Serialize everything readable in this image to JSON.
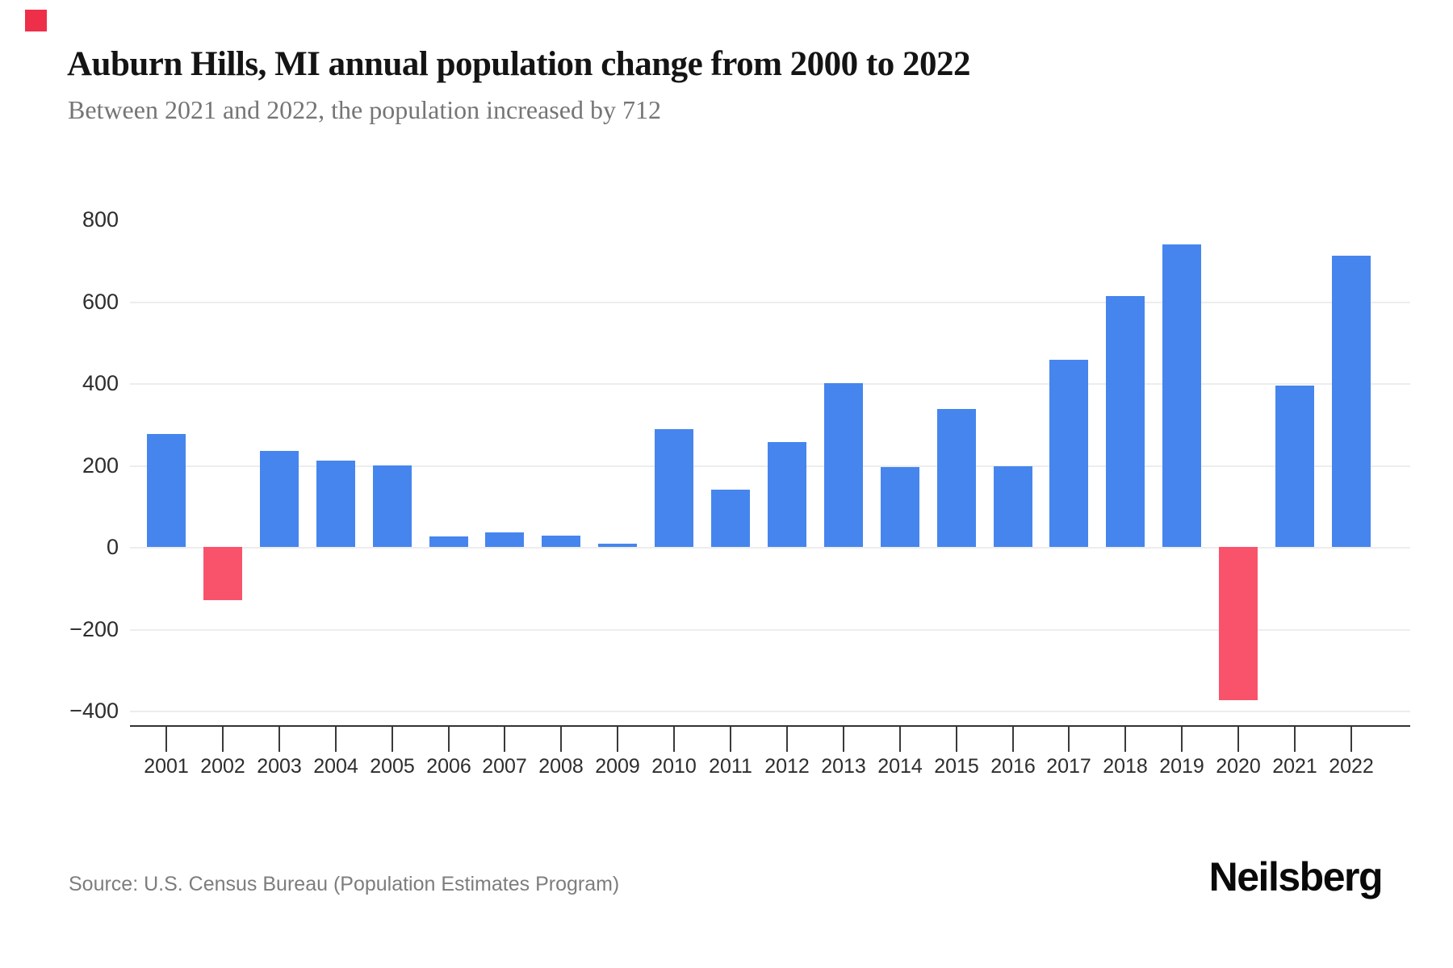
{
  "logo": {
    "mark_color": "#ee2f4a"
  },
  "header": {
    "title": "Auburn Hills, MI annual population change from 2000 to 2022",
    "subtitle": "Between 2021 and 2022, the population increased by 712"
  },
  "chart_data": {
    "type": "bar",
    "title": "Auburn Hills, MI annual population change from 2000 to 2022",
    "subtitle": "Between 2021 and 2022, the population increased by 712",
    "categories": [
      "2001",
      "2002",
      "2003",
      "2004",
      "2005",
      "2006",
      "2007",
      "2008",
      "2009",
      "2010",
      "2011",
      "2012",
      "2013",
      "2014",
      "2015",
      "2016",
      "2017",
      "2018",
      "2019",
      "2020",
      "2021",
      "2022"
    ],
    "values": [
      275,
      -130,
      235,
      210,
      200,
      25,
      35,
      28,
      7,
      287,
      140,
      257,
      400,
      195,
      337,
      197,
      458,
      612,
      738,
      -375,
      395,
      712
    ],
    "positive_color": "#4685ee",
    "negative_color": "#f9536b",
    "xlabel": "",
    "ylabel": "",
    "ylim": [
      -400,
      800
    ],
    "yticks": [
      800,
      600,
      400,
      200,
      0,
      -200,
      -400
    ],
    "gridlines": [
      600,
      400,
      200,
      0,
      -200,
      -400
    ],
    "grid": true,
    "legend": false
  },
  "footer": {
    "source": "Source: U.S. Census Bureau (Population Estimates Program)",
    "brand": "Neilsberg"
  }
}
